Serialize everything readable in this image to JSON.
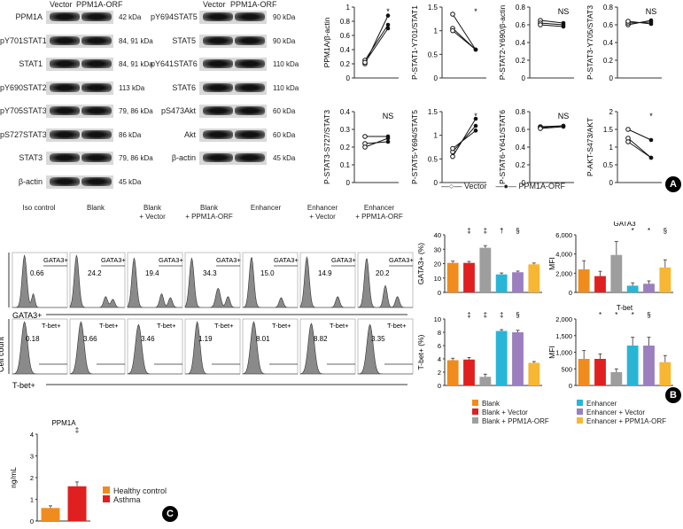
{
  "panel_labels": {
    "a": "A",
    "b": "B",
    "c": "C"
  },
  "blot_left": {
    "headers": [
      "Vector",
      "PPM1A-ORF"
    ],
    "rows": [
      {
        "label": "PPM1A",
        "kda": "42 kDa"
      },
      {
        "label": "pY701STAT1",
        "kda": "84, 91 kDa"
      },
      {
        "label": "STAT1",
        "kda": "84, 91 kDa"
      },
      {
        "label": "pY690STAT2",
        "kda": "113 kDa"
      },
      {
        "label": "pY705STAT3",
        "kda": "79, 86 kDa"
      },
      {
        "label": "pS727STAT3",
        "kda": "86 kDa"
      },
      {
        "label": "STAT3",
        "kda": "79, 86 kDa"
      },
      {
        "label": "β-actin",
        "kda": "45 kDa"
      }
    ]
  },
  "blot_right": {
    "headers": [
      "Vector",
      "PPM1A-ORF"
    ],
    "rows": [
      {
        "label": "pY694STAT5",
        "kda": "90 kDa"
      },
      {
        "label": "STAT5",
        "kda": "90 kDa"
      },
      {
        "label": "pY641STAT6",
        "kda": "110 kDa"
      },
      {
        "label": "STAT6",
        "kda": "110 kDa"
      },
      {
        "label": "pS473Akt",
        "kda": "60 kDa"
      },
      {
        "label": "Akt",
        "kda": "60 kDa"
      },
      {
        "label": "β-actin",
        "kda": "45 kDa"
      }
    ]
  },
  "paired_legend": {
    "vector": "Vector",
    "orf": "PPM1A-ORF"
  },
  "flow": {
    "conditions": [
      "Iso control",
      "Blank",
      "Blank\n+ Vector",
      "Blank\n+ PPM1A-ORF",
      "Enhancer",
      "Enhancer\n+ Vector",
      "Enhancer\n+ PPM1A-ORF"
    ],
    "gata3_label": "GATA3+",
    "gata3_values": [
      "0.66",
      "24.2",
      "19.4",
      "34.3",
      "15.0",
      "14.9",
      "20.2"
    ],
    "tbet_label": "T-bet+",
    "tbet_values": [
      "0.18",
      "3.66",
      "3.46",
      "1.19",
      "8.01",
      "8.82",
      "3.35"
    ],
    "y_axis": "Cell count",
    "x_gata3": "GATA3+",
    "x_tbet": "T-bet+"
  },
  "bar_legend": [
    "Blank",
    "Blank + Vector",
    "Blank + PPM1A-ORF",
    "Enhancer",
    "Enhancer + Vector",
    "Enhancer + PPM1A-ORF"
  ],
  "colors": {
    "blank": "#f08c1e",
    "blank_vector": "#e02020",
    "blank_orf": "#9e9e9e",
    "enhancer": "#29b6d6",
    "enhancer_vector": "#9b7fbf",
    "enhancer_orf": "#f7b733",
    "healthy": "#f08c1e",
    "asthma": "#e02020"
  },
  "ppm1a_legend": {
    "title": "PPM1A",
    "ylabel": "ng/mL",
    "healthy": "Healthy control",
    "asthma": "Asthma"
  },
  "chart_data": [
    {
      "type": "line",
      "title": "",
      "ylabel": "PPM1A/β-actin",
      "ylim": [
        0,
        1.0
      ],
      "yticks": [
        0,
        0.2,
        0.4,
        0.6,
        0.8,
        1.0
      ],
      "sig": "*",
      "pairs": [
        [
          0.2,
          0.88
        ],
        [
          0.25,
          0.75
        ],
        [
          0.22,
          0.7
        ]
      ]
    },
    {
      "type": "line",
      "title": "",
      "ylabel": "P-STAT1-Y701/STAT1",
      "ylim": [
        0,
        1.5
      ],
      "yticks": [
        0,
        0.5,
        1.0,
        1.5
      ],
      "sig": "*",
      "pairs": [
        [
          1.35,
          0.6
        ],
        [
          1.05,
          0.6
        ],
        [
          1.0,
          0.6
        ]
      ]
    },
    {
      "type": "line",
      "title": "",
      "ylabel": "P-STAT2-Y690/β-actin",
      "ylim": [
        0,
        0.8
      ],
      "yticks": [
        0,
        0.2,
        0.4,
        0.6,
        0.8
      ],
      "sig": "NS",
      "pairs": [
        [
          0.65,
          0.62
        ],
        [
          0.62,
          0.6
        ],
        [
          0.6,
          0.58
        ]
      ]
    },
    {
      "type": "line",
      "title": "",
      "ylabel": "P-STAT3-Y705/STAT3",
      "ylim": [
        0,
        0.8
      ],
      "yticks": [
        0,
        0.2,
        0.4,
        0.6,
        0.8
      ],
      "sig": "NS",
      "pairs": [
        [
          0.6,
          0.65
        ],
        [
          0.62,
          0.63
        ],
        [
          0.64,
          0.61
        ]
      ]
    },
    {
      "type": "line",
      "title": "",
      "ylabel": "P-STAT3-S727/STAT3",
      "ylim": [
        0,
        0.4
      ],
      "yticks": [
        0,
        0.1,
        0.2,
        0.3,
        0.4
      ],
      "sig": "NS",
      "pairs": [
        [
          0.26,
          0.26
        ],
        [
          0.22,
          0.23
        ],
        [
          0.2,
          0.25
        ]
      ]
    },
    {
      "type": "line",
      "title": "",
      "ylabel": "P-STAT5-Y694/STAT5",
      "ylim": [
        0,
        1.5
      ],
      "yticks": [
        0,
        0.5,
        1.0,
        1.5
      ],
      "sig": "*",
      "pairs": [
        [
          0.55,
          1.35
        ],
        [
          0.65,
          1.2
        ],
        [
          0.72,
          1.1
        ]
      ]
    },
    {
      "type": "line",
      "title": "",
      "ylabel": "P-STAT6-Y641/STAT6",
      "ylim": [
        0,
        0.8
      ],
      "yticks": [
        0,
        0.2,
        0.4,
        0.6,
        0.8
      ],
      "sig": "NS",
      "pairs": [
        [
          0.63,
          0.64
        ],
        [
          0.62,
          0.64
        ],
        [
          0.61,
          0.63
        ]
      ]
    },
    {
      "type": "line",
      "title": "",
      "ylabel": "P-AKT-S473/AKT",
      "ylim": [
        0,
        2.0
      ],
      "yticks": [
        0,
        0.5,
        1.0,
        1.5,
        2.0
      ],
      "sig": "*",
      "pairs": [
        [
          1.5,
          1.2
        ],
        [
          1.25,
          0.7
        ],
        [
          1.15,
          0.7
        ]
      ]
    },
    {
      "type": "bar",
      "ylabel": "GATA3+ (%)",
      "ylim": [
        0,
        40
      ],
      "yticks": [
        0,
        10,
        20,
        30,
        40
      ],
      "values": [
        20.5,
        20.5,
        31,
        12.5,
        14,
        19.5
      ],
      "errors": [
        1.2,
        1.0,
        1.5,
        1.0,
        0.8,
        0.9
      ],
      "sig": [
        "",
        "‡",
        "‡",
        "†",
        "§"
      ]
    },
    {
      "type": "bar",
      "ylabel": "MFI",
      "title": "GATA3",
      "ylim": [
        0,
        6000
      ],
      "yticks": [
        0,
        2000,
        4000,
        6000
      ],
      "values": [
        2400,
        1700,
        3900,
        700,
        900,
        2600
      ],
      "errors": [
        900,
        500,
        1400,
        300,
        300,
        800
      ],
      "sig": [
        "",
        "",
        "",
        "*",
        "*",
        "§"
      ]
    },
    {
      "type": "bar",
      "ylabel": "T-bet+ (%)",
      "ylim": [
        0,
        10
      ],
      "yticks": [
        0,
        2,
        4,
        6,
        8,
        10
      ],
      "values": [
        3.8,
        3.9,
        1.3,
        8.2,
        8.0,
        3.4
      ],
      "errors": [
        0.3,
        0.3,
        0.4,
        0.2,
        0.3,
        0.2
      ],
      "sig": [
        "",
        "‡",
        "‡",
        "‡",
        "§"
      ]
    },
    {
      "type": "bar",
      "ylabel": "MFI",
      "title": "T-bet",
      "ylim": [
        0,
        2000
      ],
      "yticks": [
        0,
        500,
        1000,
        1500,
        2000
      ],
      "values": [
        800,
        800,
        400,
        1200,
        1200,
        700
      ],
      "errors": [
        250,
        150,
        100,
        250,
        250,
        200
      ],
      "sig": [
        "",
        "*",
        "*",
        "*",
        "§"
      ]
    },
    {
      "type": "bar",
      "ylabel": "ng/mL",
      "title": "PPM1A",
      "ylim": [
        0,
        4
      ],
      "yticks": [
        0,
        1,
        2,
        3,
        4
      ],
      "categories": [
        "Healthy control",
        "Asthma"
      ],
      "values": [
        0.6,
        1.6
      ],
      "errors": [
        0.1,
        0.2
      ],
      "sig": [
        "",
        "‡"
      ]
    }
  ]
}
